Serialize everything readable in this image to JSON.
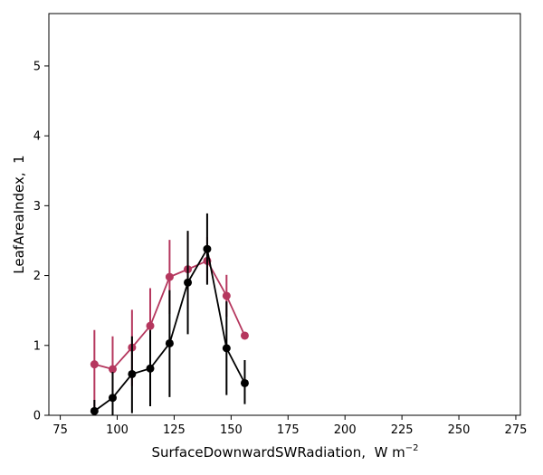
{
  "chart_data": {
    "type": "line",
    "xlabel": "SurfaceDownwardSWRadiation,",
    "xlabel_unit_base": "W m",
    "xlabel_unit_exp": "−2",
    "ylabel": "LeafAreaIndex,  1",
    "xlim": [
      70,
      277
    ],
    "ylim": [
      0,
      5.75
    ],
    "xticks": [
      75,
      100,
      125,
      150,
      175,
      200,
      225,
      250,
      275
    ],
    "yticks": [
      0,
      1,
      2,
      3,
      4,
      5
    ],
    "grid": false,
    "legend": "none",
    "series": [
      {
        "color": "#b5375e",
        "x": [
          90,
          98,
          106.5,
          114.5,
          123,
          131,
          139.5,
          148,
          156
        ],
        "y": [
          0.73,
          0.66,
          0.97,
          1.28,
          1.98,
          2.09,
          2.21,
          1.71,
          1.14
        ],
        "err_low": [
          0.0,
          0.33,
          0.42,
          0.66,
          1.45,
          1.52,
          1.9,
          1.41,
          1.14
        ],
        "err_high": [
          1.22,
          1.13,
          1.51,
          1.82,
          2.51,
          2.62,
          2.55,
          2.01,
          1.14
        ]
      },
      {
        "color": "#000000",
        "x": [
          90,
          98,
          106.5,
          114.5,
          123,
          131,
          139.5,
          148,
          156
        ],
        "y": [
          0.06,
          0.25,
          0.59,
          0.67,
          1.03,
          1.9,
          2.38,
          0.96,
          0.46
        ],
        "err_low": [
          0.0,
          0.0,
          0.03,
          0.13,
          0.26,
          1.16,
          1.87,
          0.29,
          0.16
        ],
        "err_high": [
          0.22,
          0.62,
          1.13,
          1.22,
          1.79,
          2.64,
          2.89,
          1.63,
          0.79
        ]
      }
    ]
  }
}
